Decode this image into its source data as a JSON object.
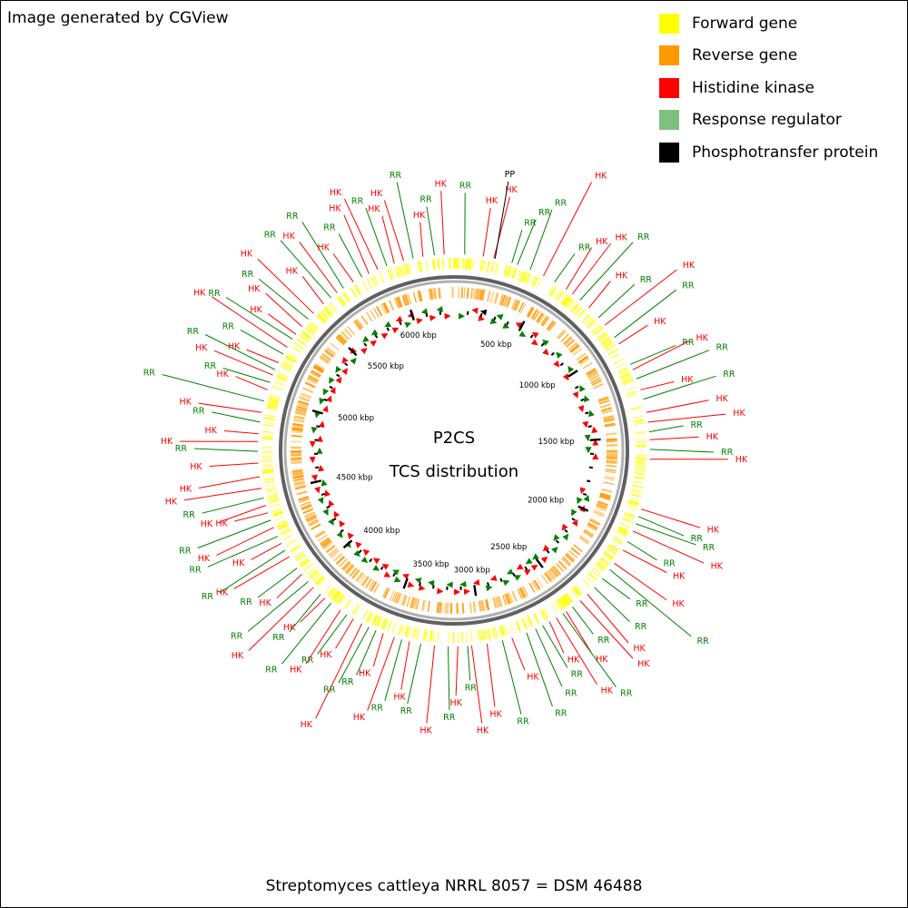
{
  "header": {
    "generator_note": "Image generated by CGView"
  },
  "legend": {
    "items": [
      {
        "label": "Forward gene",
        "color": "#ffff00"
      },
      {
        "label": "Reverse gene",
        "color": "#ff9900"
      },
      {
        "label": "Histidine kinase",
        "color": "#ff0000"
      },
      {
        "label": "Response regulator",
        "color": "#7fbf7f"
      },
      {
        "label": "Phosphotransfer protein",
        "color": "#000000"
      }
    ]
  },
  "map": {
    "title": "P2CS",
    "subtitle": "TCS distribution",
    "colors": {
      "forward": "#ffff00",
      "reverse": "#ff9900",
      "hk": "#ff0000",
      "hk_marker": "#ff0000",
      "rr": "#008000",
      "rr_marker": "#008000",
      "pp": "#000000",
      "backbone": "#808080"
    },
    "genome_length_kbp": 6300,
    "tick_labels": [
      "500 kbp",
      "1000 kbp",
      "1500 kbp",
      "2000 kbp",
      "2500 kbp",
      "3000 kbp",
      "3500 kbp",
      "4000 kbp",
      "4500 kbp",
      "5000 kbp",
      "5500 kbp",
      "6000 kbp"
    ],
    "tick_positions_kbp": [
      500,
      1000,
      1500,
      2000,
      2500,
      3000,
      3500,
      4000,
      4500,
      5000,
      5500,
      6000
    ],
    "tcs_genes": [
      {
        "type": "RR",
        "kbp": 55
      },
      {
        "type": "HK",
        "kbp": 150
      },
      {
        "type": "HK",
        "kbp": 205
      },
      {
        "type": "PP",
        "kbp": 212
      },
      {
        "type": "RR",
        "kbp": 300
      },
      {
        "type": "RR",
        "kbp": 330
      },
      {
        "type": "RR",
        "kbp": 400
      },
      {
        "type": "HK",
        "kbp": 475
      },
      {
        "type": "RR",
        "kbp": 540
      },
      {
        "type": "HK",
        "kbp": 610
      },
      {
        "type": "HK",
        "kbp": 650
      },
      {
        "type": "RR",
        "kbp": 700
      },
      {
        "type": "HK",
        "kbp": 760
      },
      {
        "type": "RR",
        "kbp": 830
      },
      {
        "type": "HK",
        "kbp": 880
      },
      {
        "type": "RR",
        "kbp": 960
      },
      {
        "type": "HK",
        "kbp": 1000
      },
      {
        "type": "RR",
        "kbp": 1120
      },
      {
        "type": "HK",
        "kbp": 1150
      },
      {
        "type": "RR",
        "kbp": 1200
      },
      {
        "type": "HK",
        "kbp": 1260
      },
      {
        "type": "RR",
        "kbp": 1310
      },
      {
        "type": "HK",
        "kbp": 1380
      },
      {
        "type": "HK",
        "kbp": 1430
      },
      {
        "type": "RR",
        "kbp": 1480
      },
      {
        "type": "HK",
        "kbp": 1520
      },
      {
        "type": "RR",
        "kbp": 1570
      },
      {
        "type": "HK",
        "kbp": 1620
      },
      {
        "type": "HK",
        "kbp": 1880
      },
      {
        "type": "RR",
        "kbp": 1920
      },
      {
        "type": "RR",
        "kbp": 1960
      },
      {
        "type": "HK",
        "kbp": 2000
      },
      {
        "type": "RR",
        "kbp": 2060
      },
      {
        "type": "HK",
        "kbp": 2110
      },
      {
        "type": "HK",
        "kbp": 2190
      },
      {
        "type": "RR",
        "kbp": 2230
      },
      {
        "type": "RR",
        "kbp": 2290
      },
      {
        "type": "RR",
        "kbp": 2350
      },
      {
        "type": "HK",
        "kbp": 2400
      },
      {
        "type": "HK",
        "kbp": 2450
      },
      {
        "type": "RR",
        "kbp": 2500
      },
      {
        "type": "HK",
        "kbp": 2540
      },
      {
        "type": "RR",
        "kbp": 2560
      },
      {
        "type": "HK",
        "kbp": 2600
      },
      {
        "type": "HK",
        "kbp": 2640
      },
      {
        "type": "RR",
        "kbp": 2680
      },
      {
        "type": "RR",
        "kbp": 2720
      },
      {
        "type": "RR",
        "kbp": 2770
      },
      {
        "type": "HK",
        "kbp": 2850
      },
      {
        "type": "RR",
        "kbp": 2900
      },
      {
        "type": "HK",
        "kbp": 2980
      },
      {
        "type": "HK",
        "kbp": 3060
      },
      {
        "type": "RR",
        "kbp": 3080
      },
      {
        "type": "HK",
        "kbp": 3130
      },
      {
        "type": "RR",
        "kbp": 3180
      },
      {
        "type": "HK",
        "kbp": 3250
      },
      {
        "type": "RR",
        "kbp": 3320
      },
      {
        "type": "HK",
        "kbp": 3380
      },
      {
        "type": "RR",
        "kbp": 3420
      },
      {
        "type": "HK",
        "kbp": 3460
      },
      {
        "type": "HK",
        "kbp": 3520
      },
      {
        "type": "RR",
        "kbp": 3560
      },
      {
        "type": "RR",
        "kbp": 3600
      },
      {
        "type": "HK",
        "kbp": 3640
      },
      {
        "type": "HK",
        "kbp": 3690
      },
      {
        "type": "RR",
        "kbp": 3730
      },
      {
        "type": "HK",
        "kbp": 3770
      },
      {
        "type": "RR",
        "kbp": 3830
      },
      {
        "type": "HK",
        "kbp": 3870
      },
      {
        "type": "RR",
        "kbp": 3900
      },
      {
        "type": "HK",
        "kbp": 3950
      },
      {
        "type": "RR",
        "kbp": 3990
      },
      {
        "type": "HK",
        "kbp": 4040
      },
      {
        "type": "RR",
        "kbp": 4080
      },
      {
        "type": "HK",
        "kbp": 4150
      },
      {
        "type": "RR",
        "kbp": 4190
      },
      {
        "type": "HK",
        "kbp": 4230
      },
      {
        "type": "RR",
        "kbp": 4270
      },
      {
        "type": "HK",
        "kbp": 4320
      },
      {
        "type": "RR",
        "kbp": 4360
      },
      {
        "type": "HK",
        "kbp": 4400
      },
      {
        "type": "HK",
        "kbp": 4440
      },
      {
        "type": "RR",
        "kbp": 4480
      },
      {
        "type": "HK",
        "kbp": 4530
      },
      {
        "type": "HK",
        "kbp": 4590
      },
      {
        "type": "HK",
        "kbp": 4660
      },
      {
        "type": "RR",
        "kbp": 4720
      },
      {
        "type": "HK",
        "kbp": 4770
      },
      {
        "type": "HK",
        "kbp": 4810
      },
      {
        "type": "RR",
        "kbp": 4870
      },
      {
        "type": "HK",
        "kbp": 4920
      },
      {
        "type": "RR",
        "kbp": 4980
      },
      {
        "type": "HK",
        "kbp": 5040
      },
      {
        "type": "RR",
        "kbp": 5080
      },
      {
        "type": "HK",
        "kbp": 5120
      },
      {
        "type": "RR",
        "kbp": 5150
      },
      {
        "type": "HK",
        "kbp": 5190
      },
      {
        "type": "RR",
        "kbp": 5240
      },
      {
        "type": "HK",
        "kbp": 5280
      },
      {
        "type": "RR",
        "kbp": 5330
      },
      {
        "type": "HK",
        "kbp": 5360
      },
      {
        "type": "HK",
        "kbp": 5410
      },
      {
        "type": "RR",
        "kbp": 5460
      },
      {
        "type": "HK",
        "kbp": 5500
      },
      {
        "type": "HK",
        "kbp": 5570
      },
      {
        "type": "RR",
        "kbp": 5620
      },
      {
        "type": "HK",
        "kbp": 5660
      },
      {
        "type": "RR",
        "kbp": 5700
      },
      {
        "type": "HK",
        "kbp": 5760
      },
      {
        "type": "RR",
        "kbp": 5810
      },
      {
        "type": "HK",
        "kbp": 5850
      },
      {
        "type": "HK",
        "kbp": 5900
      },
      {
        "type": "RR",
        "kbp": 5950
      },
      {
        "type": "HK",
        "kbp": 5990
      },
      {
        "type": "HK",
        "kbp": 6040
      },
      {
        "type": "RR",
        "kbp": 6090
      },
      {
        "type": "HK",
        "kbp": 6140
      },
      {
        "type": "RR",
        "kbp": 6200
      },
      {
        "type": "HK",
        "kbp": 6250
      }
    ]
  },
  "footer": {
    "organism": "Streptomyces cattleya NRRL 8057 = DSM 46488"
  }
}
